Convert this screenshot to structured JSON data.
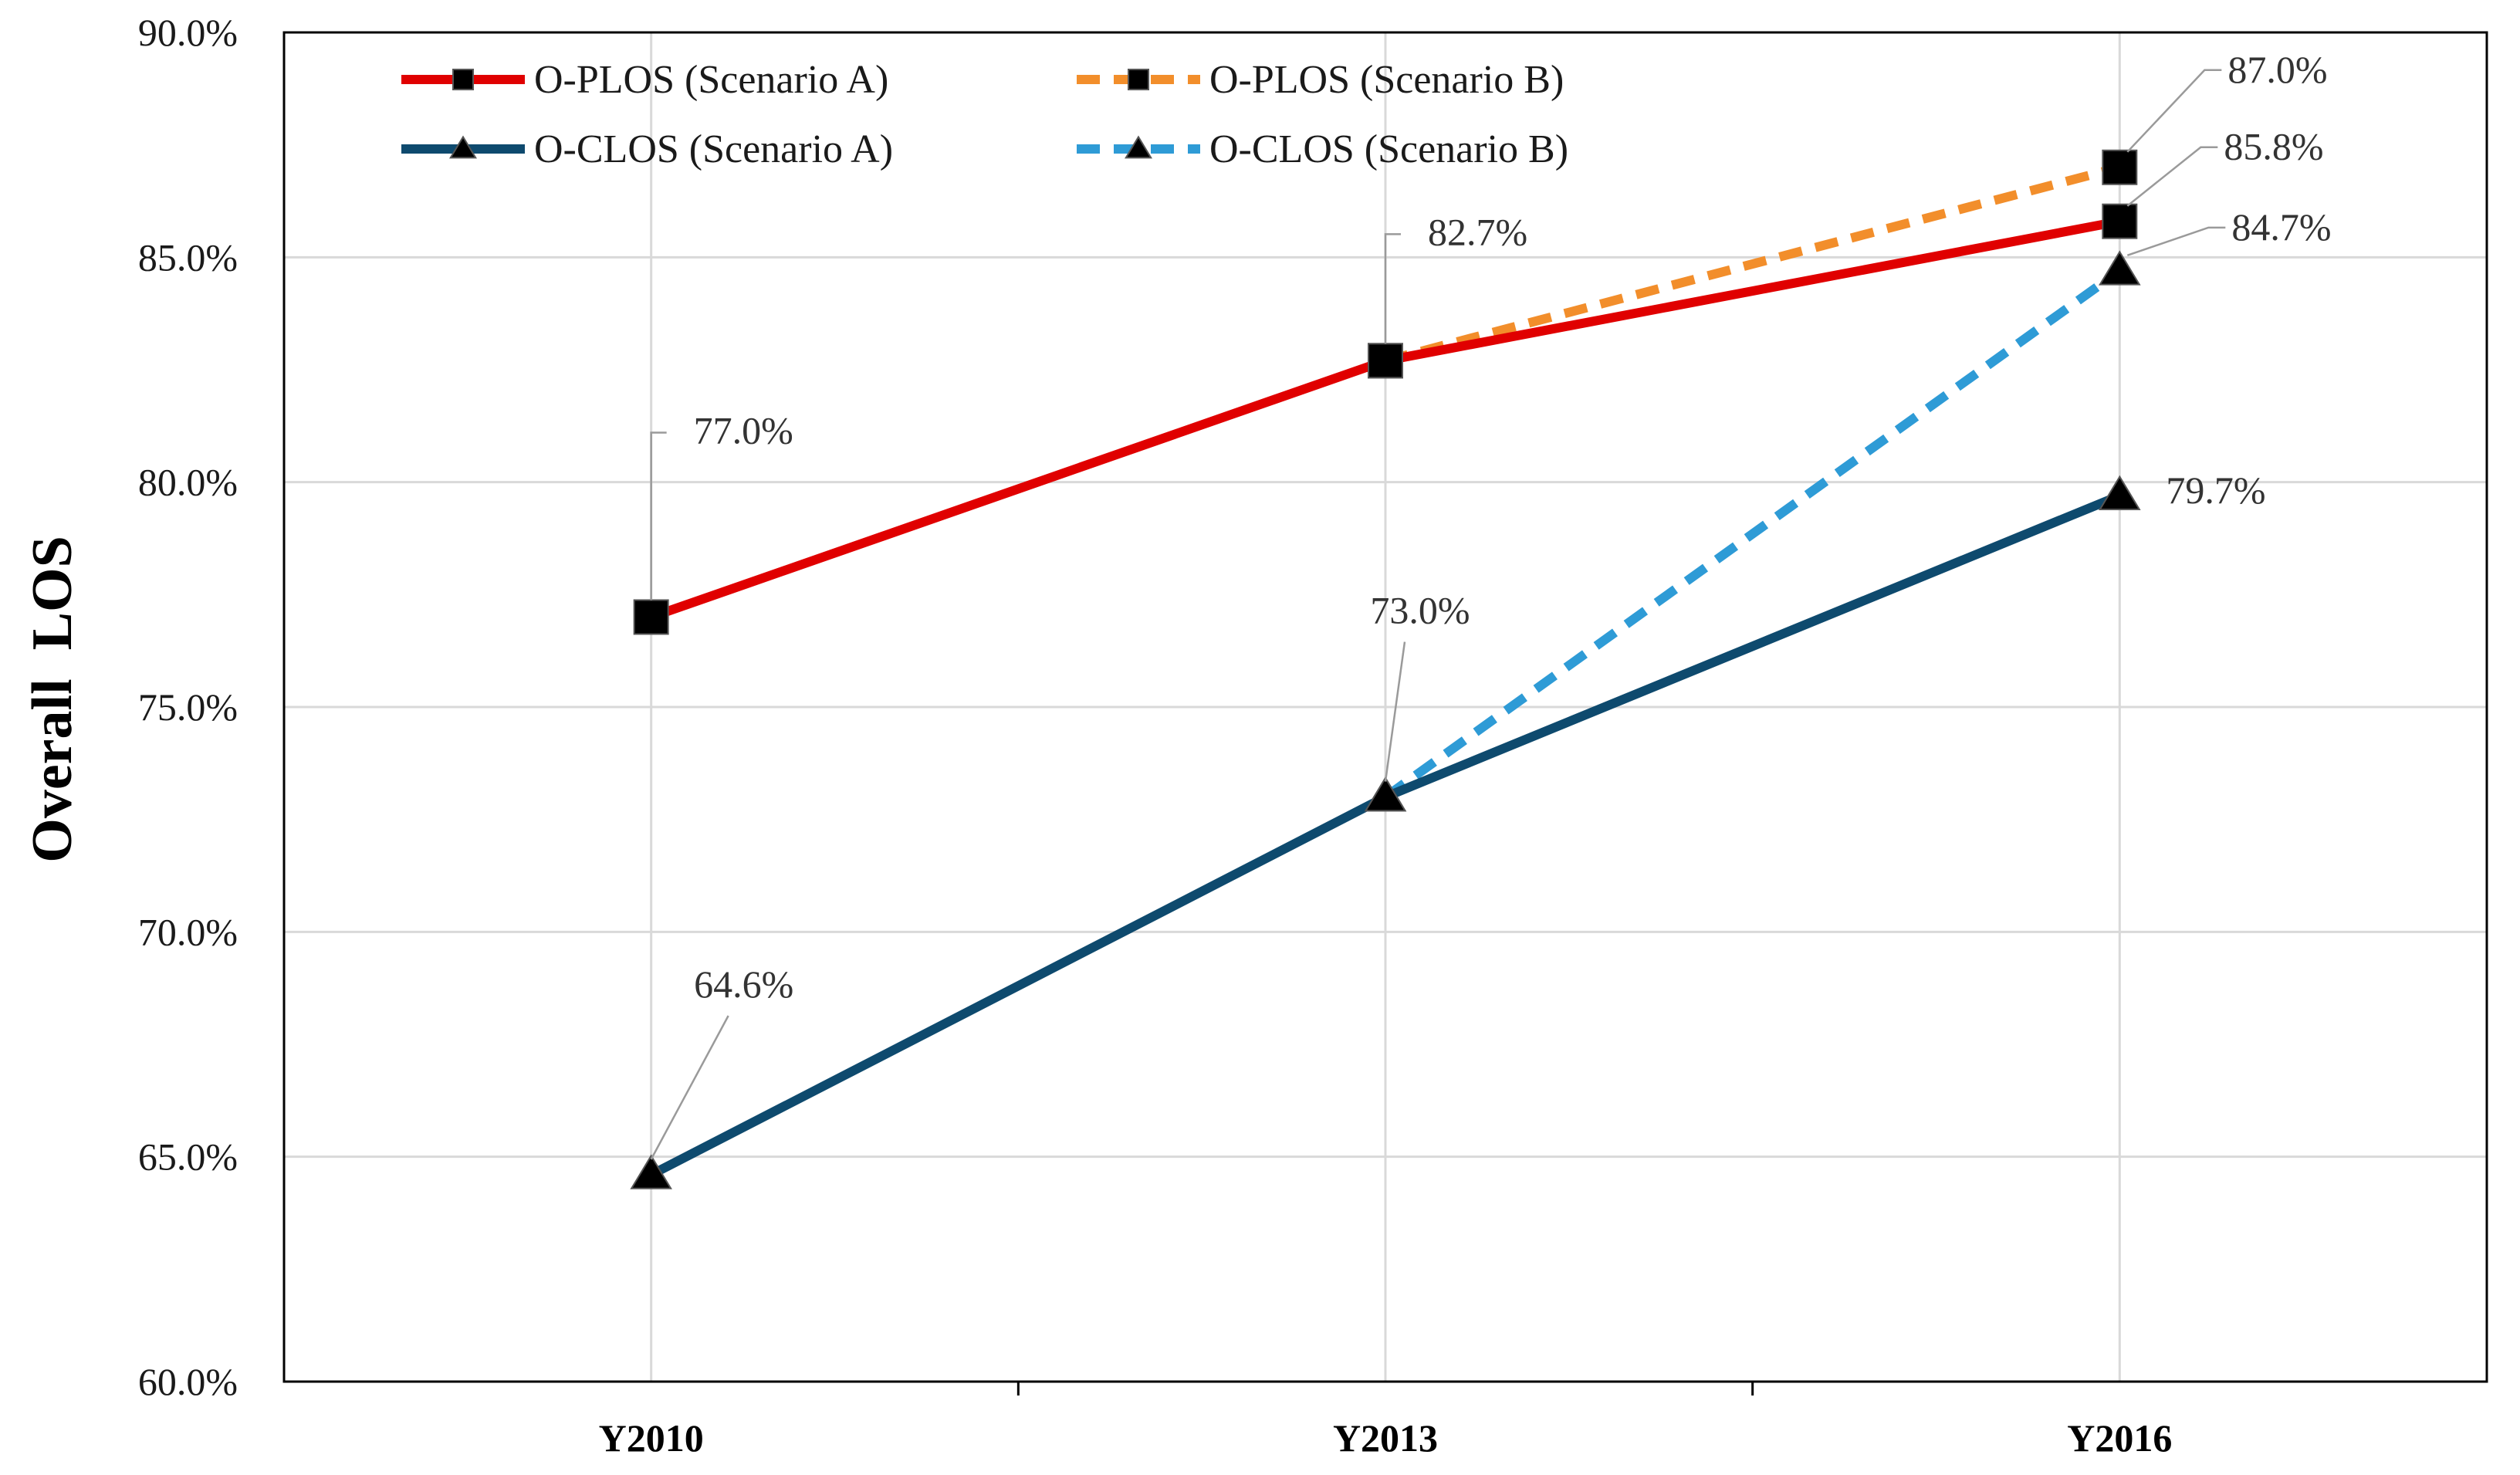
{
  "chart_data": {
    "type": "line",
    "title": "",
    "xlabel": "",
    "ylabel": "Overall  LOS",
    "categories": [
      "Y2010",
      "Y2013",
      "Y2016"
    ],
    "ylim": [
      60,
      90
    ],
    "yticks": [
      60,
      65,
      70,
      75,
      80,
      85,
      90
    ],
    "ytick_labels": [
      "60.0%",
      "65.0%",
      "70.0%",
      "75.0%",
      "80.0%",
      "85.0%",
      "90.0%"
    ],
    "grid": true,
    "legend_position": "top-left",
    "series": [
      {
        "name": "O-PLOS (Scenario A)",
        "values": [
          77.0,
          82.7,
          85.8
        ],
        "color": "#e00000",
        "dashed": false,
        "marker": "square"
      },
      {
        "name": "O-PLOS  (Scenario B)",
        "values": [
          null,
          82.7,
          87.0
        ],
        "color": "#f28e2b",
        "dashed": true,
        "marker": "square"
      },
      {
        "name": "O-CLOS (Scenario A)",
        "values": [
          64.6,
          73.0,
          79.7
        ],
        "color": "#0e4a6e",
        "dashed": false,
        "marker": "triangle"
      },
      {
        "name": "O-CLOS (Scenario B)",
        "values": [
          null,
          73.0,
          84.7
        ],
        "color": "#2e9bd6",
        "dashed": true,
        "marker": "triangle"
      }
    ],
    "data_labels": [
      {
        "text": "77.0%",
        "category": "Y2010",
        "value": 77.0
      },
      {
        "text": "82.7%",
        "category": "Y2013",
        "value": 82.7
      },
      {
        "text": "73.0%",
        "category": "Y2013",
        "value": 73.0
      },
      {
        "text": "64.6%",
        "category": "Y2010",
        "value": 64.6
      },
      {
        "text": "87.0%",
        "category": "Y2016",
        "value": 87.0
      },
      {
        "text": "85.8%",
        "category": "Y2016",
        "value": 85.8
      },
      {
        "text": "84.7%",
        "category": "Y2016",
        "value": 84.7
      },
      {
        "text": "79.7%",
        "category": "Y2016",
        "value": 79.7
      }
    ]
  }
}
